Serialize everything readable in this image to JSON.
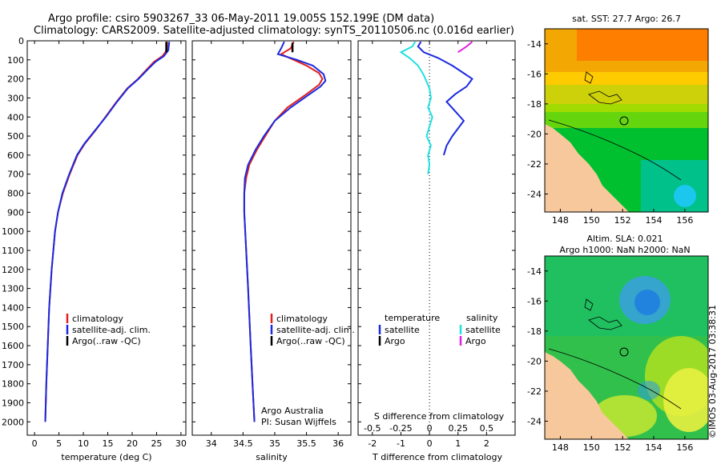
{
  "title_line1": "Argo profile: csiro 5903267_33 06-May-2011 19.005S 152.199E (DM data)",
  "title_line2": "Climatology: CARS2009. Satellite-adjusted climatology: synTS_20110506.nc (0.016d earlier)",
  "credit": "Argo Australia",
  "pi": "PI: Susan Wijffels",
  "watermark": "©IMOS 03-Aug-2017 03:38:31",
  "legend_profiles": {
    "climatology": "climatology",
    "satellite": "satellite-adj. clim.",
    "argo": "Argo(..raw -QC)"
  },
  "legend_diff": {
    "temp_title": "temperature",
    "sal_title": "salinity",
    "satellite": "satellite",
    "argo": "Argo"
  },
  "colors": {
    "climatology": "#e02020",
    "satellite": "#1a2ae0",
    "argo": "#000000",
    "salinity_satellite": "#20e0e0",
    "salinity_argo": "#e020e0",
    "land": "#f7c89b"
  },
  "chart_data": [
    {
      "type": "line",
      "panel": "temperature",
      "xlabel": "temperature (deg C)",
      "xlim": [
        -1.5,
        31
      ],
      "xticks": [
        0,
        5,
        10,
        15,
        20,
        25,
        30
      ],
      "ylim": [
        2070,
        0
      ],
      "yticks": [
        0,
        100,
        200,
        300,
        400,
        500,
        600,
        700,
        800,
        900,
        1000,
        1100,
        1200,
        1300,
        1400,
        1500,
        1600,
        1700,
        1800,
        1900,
        2000
      ],
      "series": [
        {
          "key": "climatology",
          "name": "climatology",
          "points": [
            [
              27.2,
              5
            ],
            [
              27.1,
              50
            ],
            [
              26.2,
              80
            ],
            [
              24.5,
              110
            ],
            [
              23,
              150
            ],
            [
              21.2,
              200
            ],
            [
              19,
              250
            ],
            [
              16.8,
              320
            ],
            [
              14.5,
              400
            ],
            [
              12.5,
              470
            ],
            [
              10.3,
              540
            ],
            [
              8.8,
              600
            ],
            [
              7.2,
              700
            ],
            [
              5.8,
              800
            ],
            [
              4.8,
              900
            ],
            [
              4.2,
              1000
            ],
            [
              3.5,
              1200
            ],
            [
              3.0,
              1400
            ],
            [
              2.7,
              1600
            ],
            [
              2.4,
              1800
            ],
            [
              2.2,
              2000
            ]
          ]
        },
        {
          "key": "satellite",
          "name": "satellite-adj. clim.",
          "points": [
            [
              27.6,
              5
            ],
            [
              27.4,
              50
            ],
            [
              26.5,
              80
            ],
            [
              24.8,
              110
            ],
            [
              23.2,
              150
            ],
            [
              21.3,
              200
            ],
            [
              19.1,
              250
            ],
            [
              16.9,
              320
            ],
            [
              14.6,
              400
            ],
            [
              12.4,
              470
            ],
            [
              10.2,
              540
            ],
            [
              8.7,
              600
            ],
            [
              7.1,
              700
            ],
            [
              5.7,
              800
            ],
            [
              4.8,
              900
            ],
            [
              4.2,
              1000
            ],
            [
              3.5,
              1200
            ],
            [
              3.0,
              1400
            ],
            [
              2.7,
              1600
            ],
            [
              2.4,
              1800
            ],
            [
              2.2,
              2000
            ]
          ]
        },
        {
          "key": "argo",
          "name": "Argo(..raw -QC)",
          "points": [
            [
              27.0,
              5
            ],
            [
              27.0,
              60
            ]
          ]
        }
      ]
    },
    {
      "type": "line",
      "panel": "salinity",
      "xlabel": "salinity",
      "xlim": [
        33.7,
        36.2
      ],
      "xticks": [
        34,
        34.5,
        35,
        35.5,
        36
      ],
      "ylim": [
        2070,
        0
      ],
      "series": [
        {
          "key": "climatology",
          "name": "climatology",
          "points": [
            [
              35.3,
              5
            ],
            [
              35.25,
              40
            ],
            [
              35.1,
              70
            ],
            [
              35.3,
              100
            ],
            [
              35.5,
              130
            ],
            [
              35.7,
              170
            ],
            [
              35.75,
              200
            ],
            [
              35.7,
              230
            ],
            [
              35.5,
              280
            ],
            [
              35.2,
              350
            ],
            [
              35.0,
              420
            ],
            [
              34.85,
              500
            ],
            [
              34.72,
              570
            ],
            [
              34.6,
              650
            ],
            [
              34.55,
              720
            ],
            [
              34.52,
              800
            ],
            [
              34.52,
              900
            ],
            [
              34.55,
              1100
            ],
            [
              34.58,
              1300
            ],
            [
              34.62,
              1600
            ],
            [
              34.65,
              1800
            ],
            [
              34.68,
              2000
            ]
          ]
        },
        {
          "key": "satellite",
          "name": "satellite-adj. clim.",
          "points": [
            [
              35.15,
              5
            ],
            [
              35.1,
              40
            ],
            [
              35.05,
              70
            ],
            [
              35.35,
              100
            ],
            [
              35.6,
              130
            ],
            [
              35.77,
              175
            ],
            [
              35.8,
              210
            ],
            [
              35.72,
              240
            ],
            [
              35.55,
              280
            ],
            [
              35.25,
              350
            ],
            [
              35.0,
              420
            ],
            [
              34.83,
              500
            ],
            [
              34.7,
              570
            ],
            [
              34.58,
              650
            ],
            [
              34.53,
              720
            ],
            [
              34.52,
              800
            ],
            [
              34.52,
              900
            ],
            [
              34.55,
              1100
            ],
            [
              34.58,
              1300
            ],
            [
              34.62,
              1600
            ],
            [
              34.65,
              1800
            ],
            [
              34.68,
              2000
            ]
          ]
        },
        {
          "key": "argo",
          "name": "Argo(..raw -QC)",
          "points": [
            [
              35.28,
              10
            ],
            [
              35.28,
              60
            ]
          ]
        }
      ]
    },
    {
      "type": "line",
      "panel": "difference",
      "xlabel": "T difference from climatology",
      "x2label": "S difference from climatology",
      "xlim": [
        -2.5,
        3
      ],
      "xticks": [
        -2,
        -1,
        0,
        1,
        2
      ],
      "x2ticks": [
        -0.5,
        -0.25,
        0,
        0.25,
        0.5
      ],
      "x2tick_labels": [
        "-0.5",
        "-0.25",
        "0",
        "0.25",
        "0.5"
      ],
      "ylim": [
        2070,
        0
      ],
      "zero_line": true,
      "series": [
        {
          "key": "salinity_satellite",
          "name": "satellite",
          "points": [
            [
              -0.5,
              5
            ],
            [
              -0.6,
              30
            ],
            [
              -1.0,
              60
            ],
            [
              -0.7,
              90
            ],
            [
              -0.4,
              130
            ],
            [
              -0.2,
              180
            ],
            [
              0.0,
              250
            ],
            [
              0.05,
              300
            ],
            [
              -0.05,
              350
            ],
            [
              0.1,
              400
            ],
            [
              0.0,
              450
            ],
            [
              -0.1,
              500
            ],
            [
              0.05,
              550
            ],
            [
              -0.05,
              600
            ],
            [
              0.0,
              650
            ],
            [
              -0.05,
              700
            ]
          ]
        },
        {
          "key": "satellite",
          "name": "satellite",
          "points": [
            [
              -0.3,
              5
            ],
            [
              -0.4,
              30
            ],
            [
              -0.2,
              60
            ],
            [
              0.3,
              90
            ],
            [
              0.8,
              130
            ],
            [
              1.2,
              170
            ],
            [
              1.5,
              200
            ],
            [
              1.3,
              240
            ],
            [
              0.9,
              280
            ],
            [
              0.6,
              320
            ],
            [
              0.9,
              370
            ],
            [
              1.2,
              420
            ],
            [
              1.0,
              460
            ],
            [
              0.8,
              500
            ],
            [
              0.6,
              550
            ],
            [
              0.5,
              600
            ]
          ]
        },
        {
          "key": "salinity_argo",
          "name": "Argo",
          "points": [
            [
              1.5,
              5
            ],
            [
              1.3,
              30
            ],
            [
              1.0,
              60
            ]
          ]
        }
      ]
    },
    {
      "type": "heatmap",
      "panel": "sst_map",
      "title": "sat. SST: 27.7  Argo: 26.7",
      "xlim": [
        147,
        157.5
      ],
      "ylim": [
        -25.2,
        -13
      ],
      "xticks": [
        148,
        150,
        152,
        154,
        156
      ],
      "yticks": [
        -14,
        -16,
        -18,
        -20,
        -22,
        -24
      ],
      "float_position": [
        152.2,
        -19.0
      ]
    },
    {
      "type": "heatmap",
      "panel": "sla_map",
      "title_line1": "Altim. SLA: 0.021",
      "title_line2": "Argo h1000: NaN h2000: NaN",
      "xlim": [
        147,
        157.5
      ],
      "ylim": [
        -25.2,
        -13
      ],
      "xticks": [
        148,
        150,
        152,
        154,
        156
      ],
      "yticks": [
        -14,
        -16,
        -18,
        -20,
        -22,
        -24
      ],
      "float_position": [
        152.2,
        -19.0
      ]
    }
  ]
}
